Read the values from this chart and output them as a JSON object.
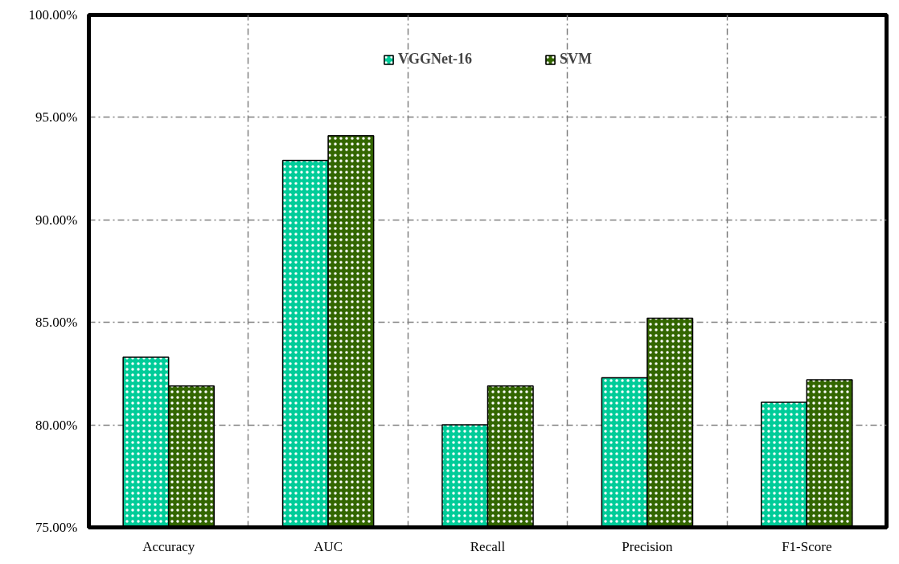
{
  "chart_data": {
    "type": "bar",
    "categories": [
      "Accuracy",
      "AUC",
      "Recall",
      "Precision",
      "F1-Score"
    ],
    "series": [
      {
        "name": "VGGNet-16",
        "color": "#00cc99",
        "values": [
          83.3,
          92.9,
          80.0,
          82.3,
          81.1
        ]
      },
      {
        "name": "SVM",
        "color": "#336600",
        "values": [
          81.9,
          94.1,
          81.9,
          85.2,
          82.2
        ]
      }
    ],
    "ylim": [
      75,
      100
    ],
    "yticks": [
      {
        "value": 75,
        "label": "75.00%"
      },
      {
        "value": 80,
        "label": "80.00%"
      },
      {
        "value": 85,
        "label": "85.00%"
      },
      {
        "value": 90,
        "label": "90.00%"
      },
      {
        "value": 95,
        "label": "95.00%"
      },
      {
        "value": 100,
        "label": "100.00%"
      }
    ],
    "grid": true,
    "legend": "top"
  }
}
